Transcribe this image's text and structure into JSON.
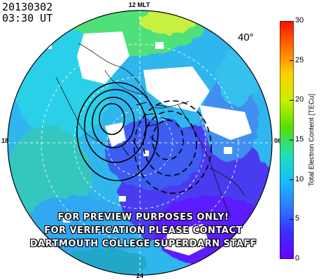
{
  "header": {
    "date": "20130302",
    "time": "03:30 UT"
  },
  "map": {
    "mlt_labels": {
      "top": "12 MLT",
      "left": "18",
      "right": "06",
      "bottom": "24"
    },
    "lat_label": "40°"
  },
  "watermark": {
    "lines": [
      "FOR PREVIEW PURPOSES ONLY!",
      "FOR VERIFICATION PLEASE CONTACT",
      "DARTMOUTH COLLEGE SUPERDARN STAFF"
    ]
  },
  "colorbar": {
    "title": "Total Electron Content [TECu]",
    "min": 0,
    "max": 30,
    "ticks": [
      "0",
      "5",
      "10",
      "15",
      "20",
      "25",
      "30"
    ],
    "colors": [
      "#6a00ff",
      "#3a2cff",
      "#2f7dff",
      "#14c0ff",
      "#20e0b0",
      "#55e000",
      "#c8f000",
      "#ffd000",
      "#ff7000",
      "#ff1000"
    ]
  }
}
